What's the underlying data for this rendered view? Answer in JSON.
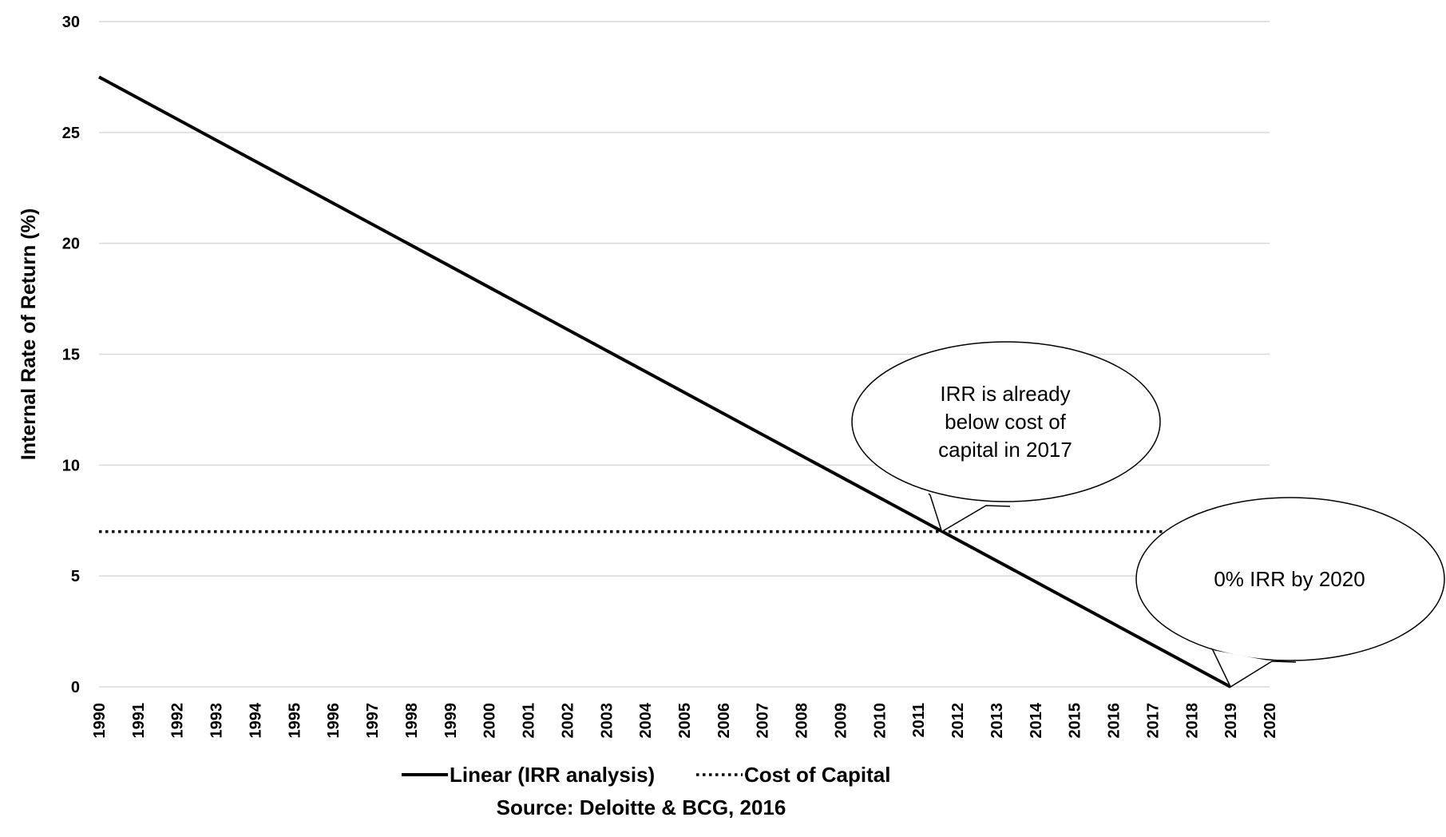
{
  "chart_data": {
    "type": "line",
    "title": "",
    "xlabel": "",
    "ylabel": "Internal Rate of Return (%)",
    "ylim": [
      0,
      30
    ],
    "yticks": [
      0,
      5,
      10,
      15,
      20,
      25,
      30
    ],
    "xlim": [
      1990,
      2020
    ],
    "categories": [
      "1990",
      "1991",
      "1992",
      "1993",
      "1994",
      "1995",
      "1996",
      "1997",
      "1998",
      "1999",
      "2000",
      "2001",
      "2002",
      "2003",
      "2004",
      "2005",
      "2006",
      "2007",
      "2008",
      "2009",
      "2010",
      "2011",
      "2012",
      "2013",
      "2014",
      "2015",
      "2016",
      "2017",
      "2018",
      "2019",
      "2020"
    ],
    "grid": true,
    "legend_position": "bottom",
    "series": [
      {
        "name": "Linear (IRR analysis)",
        "style": "solid",
        "color": "#000000",
        "x": [
          1990,
          2019
        ],
        "y": [
          27.5,
          0
        ]
      },
      {
        "name": "Cost of Capital",
        "style": "dotted",
        "color": "#000000",
        "x": [
          1990,
          2020
        ],
        "y": [
          7,
          7
        ]
      }
    ],
    "annotations": [
      {
        "lines": [
          "IRR is already",
          "below cost of",
          "capital in 2017"
        ],
        "point_x": 2011.6,
        "point_y": 7
      },
      {
        "lines": [
          "0% IRR by 2020"
        ],
        "point_x": 2019,
        "point_y": 0
      }
    ],
    "source": "Source: Deloitte & BCG, 2016"
  },
  "colors": {
    "line": "#000000",
    "grid": "#d9d9d9",
    "background": "#ffffff"
  }
}
